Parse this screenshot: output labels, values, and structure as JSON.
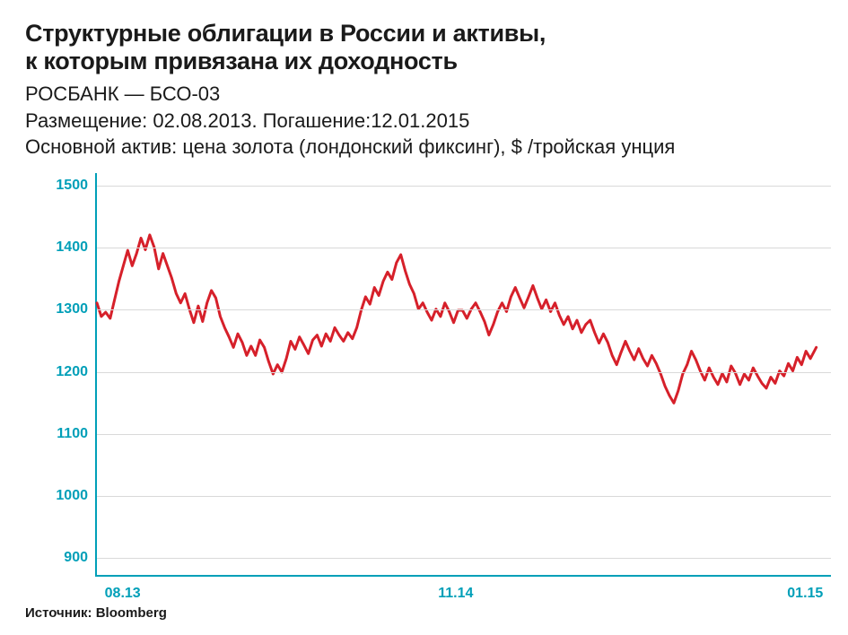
{
  "title_line1": "Структурные облигации в России и активы,",
  "title_line2": "к которым привязана их доходность",
  "subtitle1": "РОСБАНК — БСО-03",
  "subtitle2": "Размещение: 02.08.2013. Погашение:12.01.2015",
  "subtitle3": "Основной актив: цена золота (лондонский фиксинг), $ /тройская унция",
  "source": "Источник: Bloomberg",
  "chart": {
    "type": "line",
    "line_color": "#d6202a",
    "line_width": 3,
    "axis_color": "#009fb8",
    "grid_color": "#d9d9d9",
    "label_color": "#009fb8",
    "label_fontsize": 16,
    "background_color": "#ffffff",
    "ylim": [
      870,
      1520
    ],
    "yticks": [
      900,
      1000,
      1100,
      1200,
      1300,
      1400,
      1500
    ],
    "xlim": [
      0,
      1
    ],
    "xticks": [
      {
        "pos": 0.013,
        "label": "08.13"
      },
      {
        "pos": 0.49,
        "label": "11.14"
      },
      {
        "pos": 0.965,
        "label": "01.15"
      }
    ],
    "series": [
      {
        "x": 0.0,
        "y": 1310
      },
      {
        "x": 0.006,
        "y": 1288
      },
      {
        "x": 0.012,
        "y": 1295
      },
      {
        "x": 0.018,
        "y": 1285
      },
      {
        "x": 0.024,
        "y": 1315
      },
      {
        "x": 0.03,
        "y": 1345
      },
      {
        "x": 0.036,
        "y": 1370
      },
      {
        "x": 0.042,
        "y": 1395
      },
      {
        "x": 0.048,
        "y": 1370
      },
      {
        "x": 0.054,
        "y": 1390
      },
      {
        "x": 0.06,
        "y": 1415
      },
      {
        "x": 0.066,
        "y": 1396
      },
      {
        "x": 0.072,
        "y": 1420
      },
      {
        "x": 0.078,
        "y": 1400
      },
      {
        "x": 0.084,
        "y": 1365
      },
      {
        "x": 0.09,
        "y": 1390
      },
      {
        "x": 0.096,
        "y": 1370
      },
      {
        "x": 0.102,
        "y": 1350
      },
      {
        "x": 0.108,
        "y": 1325
      },
      {
        "x": 0.114,
        "y": 1310
      },
      {
        "x": 0.12,
        "y": 1325
      },
      {
        "x": 0.126,
        "y": 1300
      },
      {
        "x": 0.132,
        "y": 1278
      },
      {
        "x": 0.138,
        "y": 1305
      },
      {
        "x": 0.144,
        "y": 1280
      },
      {
        "x": 0.15,
        "y": 1310
      },
      {
        "x": 0.156,
        "y": 1330
      },
      {
        "x": 0.162,
        "y": 1318
      },
      {
        "x": 0.168,
        "y": 1288
      },
      {
        "x": 0.174,
        "y": 1270
      },
      {
        "x": 0.18,
        "y": 1255
      },
      {
        "x": 0.186,
        "y": 1238
      },
      {
        "x": 0.192,
        "y": 1260
      },
      {
        "x": 0.198,
        "y": 1246
      },
      {
        "x": 0.204,
        "y": 1225
      },
      {
        "x": 0.21,
        "y": 1240
      },
      {
        "x": 0.216,
        "y": 1225
      },
      {
        "x": 0.222,
        "y": 1250
      },
      {
        "x": 0.228,
        "y": 1238
      },
      {
        "x": 0.234,
        "y": 1215
      },
      {
        "x": 0.24,
        "y": 1195
      },
      {
        "x": 0.246,
        "y": 1210
      },
      {
        "x": 0.252,
        "y": 1198
      },
      {
        "x": 0.258,
        "y": 1220
      },
      {
        "x": 0.264,
        "y": 1248
      },
      {
        "x": 0.27,
        "y": 1235
      },
      {
        "x": 0.276,
        "y": 1255
      },
      {
        "x": 0.282,
        "y": 1242
      },
      {
        "x": 0.288,
        "y": 1228
      },
      {
        "x": 0.294,
        "y": 1250
      },
      {
        "x": 0.3,
        "y": 1258
      },
      {
        "x": 0.306,
        "y": 1240
      },
      {
        "x": 0.312,
        "y": 1260
      },
      {
        "x": 0.318,
        "y": 1248
      },
      {
        "x": 0.324,
        "y": 1270
      },
      {
        "x": 0.33,
        "y": 1258
      },
      {
        "x": 0.336,
        "y": 1248
      },
      {
        "x": 0.342,
        "y": 1262
      },
      {
        "x": 0.348,
        "y": 1252
      },
      {
        "x": 0.354,
        "y": 1270
      },
      {
        "x": 0.36,
        "y": 1298
      },
      {
        "x": 0.366,
        "y": 1320
      },
      {
        "x": 0.372,
        "y": 1308
      },
      {
        "x": 0.378,
        "y": 1335
      },
      {
        "x": 0.384,
        "y": 1322
      },
      {
        "x": 0.39,
        "y": 1345
      },
      {
        "x": 0.396,
        "y": 1360
      },
      {
        "x": 0.402,
        "y": 1348
      },
      {
        "x": 0.408,
        "y": 1375
      },
      {
        "x": 0.414,
        "y": 1388
      },
      {
        "x": 0.42,
        "y": 1362
      },
      {
        "x": 0.426,
        "y": 1340
      },
      {
        "x": 0.432,
        "y": 1325
      },
      {
        "x": 0.438,
        "y": 1300
      },
      {
        "x": 0.444,
        "y": 1310
      },
      {
        "x": 0.45,
        "y": 1295
      },
      {
        "x": 0.456,
        "y": 1282
      },
      {
        "x": 0.462,
        "y": 1300
      },
      {
        "x": 0.468,
        "y": 1288
      },
      {
        "x": 0.474,
        "y": 1310
      },
      {
        "x": 0.48,
        "y": 1296
      },
      {
        "x": 0.486,
        "y": 1278
      },
      {
        "x": 0.492,
        "y": 1298
      },
      {
        "x": 0.498,
        "y": 1298
      },
      {
        "x": 0.504,
        "y": 1285
      },
      {
        "x": 0.51,
        "y": 1300
      },
      {
        "x": 0.516,
        "y": 1310
      },
      {
        "x": 0.522,
        "y": 1296
      },
      {
        "x": 0.528,
        "y": 1280
      },
      {
        "x": 0.534,
        "y": 1258
      },
      {
        "x": 0.54,
        "y": 1275
      },
      {
        "x": 0.546,
        "y": 1296
      },
      {
        "x": 0.552,
        "y": 1310
      },
      {
        "x": 0.558,
        "y": 1296
      },
      {
        "x": 0.564,
        "y": 1320
      },
      {
        "x": 0.57,
        "y": 1335
      },
      {
        "x": 0.576,
        "y": 1318
      },
      {
        "x": 0.582,
        "y": 1302
      },
      {
        "x": 0.588,
        "y": 1320
      },
      {
        "x": 0.594,
        "y": 1338
      },
      {
        "x": 0.6,
        "y": 1318
      },
      {
        "x": 0.606,
        "y": 1300
      },
      {
        "x": 0.612,
        "y": 1315
      },
      {
        "x": 0.618,
        "y": 1296
      },
      {
        "x": 0.624,
        "y": 1310
      },
      {
        "x": 0.63,
        "y": 1290
      },
      {
        "x": 0.636,
        "y": 1275
      },
      {
        "x": 0.642,
        "y": 1288
      },
      {
        "x": 0.648,
        "y": 1268
      },
      {
        "x": 0.654,
        "y": 1282
      },
      {
        "x": 0.66,
        "y": 1262
      },
      {
        "x": 0.666,
        "y": 1275
      },
      {
        "x": 0.672,
        "y": 1282
      },
      {
        "x": 0.678,
        "y": 1262
      },
      {
        "x": 0.684,
        "y": 1245
      },
      {
        "x": 0.69,
        "y": 1260
      },
      {
        "x": 0.696,
        "y": 1246
      },
      {
        "x": 0.702,
        "y": 1225
      },
      {
        "x": 0.708,
        "y": 1210
      },
      {
        "x": 0.714,
        "y": 1230
      },
      {
        "x": 0.72,
        "y": 1248
      },
      {
        "x": 0.726,
        "y": 1232
      },
      {
        "x": 0.732,
        "y": 1218
      },
      {
        "x": 0.738,
        "y": 1236
      },
      {
        "x": 0.744,
        "y": 1220
      },
      {
        "x": 0.75,
        "y": 1208
      },
      {
        "x": 0.756,
        "y": 1225
      },
      {
        "x": 0.762,
        "y": 1212
      },
      {
        "x": 0.768,
        "y": 1195
      },
      {
        "x": 0.774,
        "y": 1175
      },
      {
        "x": 0.78,
        "y": 1160
      },
      {
        "x": 0.786,
        "y": 1148
      },
      {
        "x": 0.792,
        "y": 1168
      },
      {
        "x": 0.798,
        "y": 1195
      },
      {
        "x": 0.804,
        "y": 1210
      },
      {
        "x": 0.81,
        "y": 1232
      },
      {
        "x": 0.816,
        "y": 1218
      },
      {
        "x": 0.822,
        "y": 1200
      },
      {
        "x": 0.828,
        "y": 1185
      },
      {
        "x": 0.834,
        "y": 1205
      },
      {
        "x": 0.84,
        "y": 1190
      },
      {
        "x": 0.846,
        "y": 1178
      },
      {
        "x": 0.852,
        "y": 1196
      },
      {
        "x": 0.858,
        "y": 1182
      },
      {
        "x": 0.864,
        "y": 1208
      },
      {
        "x": 0.87,
        "y": 1196
      },
      {
        "x": 0.876,
        "y": 1178
      },
      {
        "x": 0.882,
        "y": 1195
      },
      {
        "x": 0.888,
        "y": 1185
      },
      {
        "x": 0.894,
        "y": 1205
      },
      {
        "x": 0.9,
        "y": 1192
      },
      {
        "x": 0.906,
        "y": 1180
      },
      {
        "x": 0.912,
        "y": 1172
      },
      {
        "x": 0.918,
        "y": 1190
      },
      {
        "x": 0.924,
        "y": 1180
      },
      {
        "x": 0.93,
        "y": 1200
      },
      {
        "x": 0.936,
        "y": 1192
      },
      {
        "x": 0.942,
        "y": 1212
      },
      {
        "x": 0.948,
        "y": 1200
      },
      {
        "x": 0.954,
        "y": 1222
      },
      {
        "x": 0.96,
        "y": 1210
      },
      {
        "x": 0.966,
        "y": 1232
      },
      {
        "x": 0.972,
        "y": 1220
      },
      {
        "x": 0.98,
        "y": 1238
      }
    ]
  }
}
